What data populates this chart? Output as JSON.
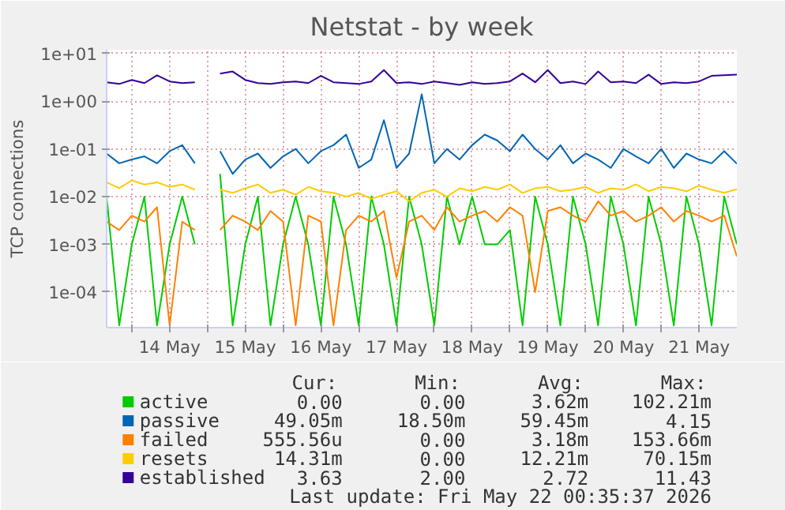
{
  "chart_data": {
    "type": "line",
    "title": "Netstat - by week",
    "ylabel": "TCP connections",
    "log": "y",
    "grid": true,
    "legend": "bottom",
    "ylim": [
      1.8e-05,
      12
    ],
    "yticks": [
      {
        "value": 0.0001,
        "label": "1e-04"
      },
      {
        "value": 0.001,
        "label": "1e-03"
      },
      {
        "value": 0.01,
        "label": "1e-02"
      },
      {
        "value": 0.1,
        "label": "1e-01"
      },
      {
        "value": 1,
        "label": "1e+00"
      },
      {
        "value": 10,
        "label": "1e+01"
      }
    ],
    "xlim": [
      "2026-05-13T16:00",
      "2026-05-22T00:00"
    ],
    "xticks": [
      {
        "value": "2026-05-14T00:00",
        "label": null
      },
      {
        "value": "2026-05-14T12:00",
        "label": "14 May"
      },
      {
        "value": "2026-05-15T00:00",
        "label": null
      },
      {
        "value": "2026-05-15T12:00",
        "label": "15 May"
      },
      {
        "value": "2026-05-16T00:00",
        "label": null
      },
      {
        "value": "2026-05-16T12:00",
        "label": "16 May"
      },
      {
        "value": "2026-05-17T00:00",
        "label": null
      },
      {
        "value": "2026-05-17T12:00",
        "label": "17 May"
      },
      {
        "value": "2026-05-18T00:00",
        "label": null
      },
      {
        "value": "2026-05-18T12:00",
        "label": "18 May"
      },
      {
        "value": "2026-05-19T00:00",
        "label": null
      },
      {
        "value": "2026-05-19T12:00",
        "label": "19 May"
      },
      {
        "value": "2026-05-20T00:00",
        "label": null
      },
      {
        "value": "2026-05-20T12:00",
        "label": "20 May"
      },
      {
        "value": "2026-05-21T00:00",
        "label": null
      },
      {
        "value": "2026-05-21T12:00",
        "label": "21 May"
      }
    ],
    "x": [
      "2026-05-13T16:00",
      "2026-05-13T20:00",
      "2026-05-14T00:00",
      "2026-05-14T04:00",
      "2026-05-14T08:00",
      "2026-05-14T12:00",
      "2026-05-14T16:00",
      "2026-05-14T20:00",
      "2026-05-15T00:00",
      "2026-05-15T04:00",
      "2026-05-15T08:00",
      "2026-05-15T12:00",
      "2026-05-15T16:00",
      "2026-05-15T20:00",
      "2026-05-16T00:00",
      "2026-05-16T04:00",
      "2026-05-16T08:00",
      "2026-05-16T12:00",
      "2026-05-16T16:00",
      "2026-05-16T20:00",
      "2026-05-17T00:00",
      "2026-05-17T04:00",
      "2026-05-17T08:00",
      "2026-05-17T12:00",
      "2026-05-17T16:00",
      "2026-05-17T20:00",
      "2026-05-18T00:00",
      "2026-05-18T04:00",
      "2026-05-18T08:00",
      "2026-05-18T12:00",
      "2026-05-18T16:00",
      "2026-05-18T20:00",
      "2026-05-19T00:00",
      "2026-05-19T04:00",
      "2026-05-19T08:00",
      "2026-05-19T12:00",
      "2026-05-19T16:00",
      "2026-05-19T20:00",
      "2026-05-20T00:00",
      "2026-05-20T04:00",
      "2026-05-20T08:00",
      "2026-05-20T12:00",
      "2026-05-20T16:00",
      "2026-05-20T20:00",
      "2026-05-21T00:00",
      "2026-05-21T04:00",
      "2026-05-21T08:00",
      "2026-05-21T12:00",
      "2026-05-21T16:00",
      "2026-05-21T20:00",
      "2026-05-22T00:00"
    ],
    "series": [
      {
        "name": "active",
        "color": "#00cc00",
        "values": [
          0.01,
          2e-05,
          0.001,
          0.01,
          2e-05,
          0.001,
          0.01,
          0.001,
          null,
          0.03,
          2e-05,
          0.001,
          0.01,
          2e-05,
          0.001,
          0.01,
          0.001,
          2e-05,
          0.01,
          0.001,
          2e-05,
          0.01,
          0.001,
          2e-05,
          0.01,
          0.001,
          2e-05,
          0.01,
          0.001,
          0.01,
          0.001,
          0.001,
          0.002,
          2e-05,
          0.01,
          0.001,
          2e-05,
          0.01,
          0.001,
          2e-05,
          0.01,
          0.001,
          2e-05,
          0.01,
          0.001,
          2e-05,
          0.01,
          0.001,
          2e-05,
          0.01,
          0.001
        ]
      },
      {
        "name": "passive",
        "color": "#0066b3",
        "values": [
          0.08,
          0.05,
          0.06,
          0.07,
          0.05,
          0.09,
          0.12,
          0.05,
          null,
          0.09,
          0.03,
          0.06,
          0.08,
          0.04,
          0.07,
          0.1,
          0.05,
          0.09,
          0.12,
          0.2,
          0.04,
          0.06,
          0.4,
          0.04,
          0.08,
          1.4,
          0.05,
          0.1,
          0.06,
          0.12,
          0.2,
          0.15,
          0.09,
          0.2,
          0.1,
          0.06,
          0.12,
          0.05,
          0.08,
          0.06,
          0.04,
          0.1,
          0.07,
          0.05,
          0.1,
          0.04,
          0.08,
          0.06,
          0.05,
          0.09,
          0.049
        ]
      },
      {
        "name": "failed",
        "color": "#ff8000",
        "values": [
          0.003,
          0.002,
          0.004,
          0.003,
          0.006,
          2e-05,
          0.003,
          0.002,
          null,
          0.002,
          0.004,
          0.003,
          0.002,
          0.005,
          0.003,
          2e-05,
          0.004,
          0.003,
          2e-05,
          0.002,
          0.004,
          0.003,
          0.005,
          0.0002,
          0.003,
          0.004,
          0.002,
          0.006,
          0.003,
          0.004,
          0.005,
          0.003,
          0.006,
          0.004,
          0.0001,
          0.005,
          0.006,
          0.004,
          0.003,
          0.008,
          0.004,
          0.005,
          0.003,
          0.004,
          0.006,
          0.003,
          0.005,
          0.004,
          0.003,
          0.004,
          0.00056
        ]
      },
      {
        "name": "resets",
        "color": "#ffcc00",
        "values": [
          0.02,
          0.015,
          0.022,
          0.018,
          0.02,
          0.016,
          0.018,
          0.014,
          null,
          0.014,
          0.012,
          0.015,
          0.018,
          0.012,
          0.014,
          0.011,
          0.016,
          0.013,
          0.012,
          0.01,
          0.012,
          0.009,
          0.011,
          0.013,
          0.008,
          0.012,
          0.014,
          0.01,
          0.015,
          0.013,
          0.016,
          0.014,
          0.018,
          0.012,
          0.015,
          0.016,
          0.013,
          0.014,
          0.016,
          0.012,
          0.015,
          0.014,
          0.018,
          0.013,
          0.016,
          0.015,
          0.013,
          0.017,
          0.014,
          0.012,
          0.0143
        ]
      },
      {
        "name": "established",
        "color": "#330099",
        "values": [
          2.5,
          2.3,
          2.8,
          2.4,
          3.5,
          2.6,
          2.4,
          2.5,
          null,
          3.8,
          4.2,
          2.8,
          2.4,
          2.3,
          2.5,
          2.6,
          2.4,
          3.4,
          2.5,
          2.4,
          2.3,
          2.6,
          4.5,
          2.4,
          2.5,
          2.3,
          2.6,
          2.4,
          2.2,
          2.5,
          2.3,
          2.4,
          2.6,
          3.8,
          2.5,
          4.5,
          2.4,
          2.6,
          2.3,
          4.2,
          2.5,
          2.6,
          2.4,
          3.6,
          2.3,
          2.5,
          2.4,
          2.6,
          3.4,
          3.5,
          3.6
        ]
      }
    ],
    "annotations": [
      "Cur:",
      "Min:",
      "Avg:",
      "Max:",
      "0.00",
      "0.00",
      "3.62m",
      "102.21m",
      "49.05m",
      "18.50m",
      "59.45m",
      "4.15",
      "555.56u",
      "0.00",
      "3.18m",
      "153.66m",
      "14.31m",
      "0.00",
      "12.21m",
      "70.15m",
      "3.63",
      "2.00",
      "2.72",
      "11.43",
      "Last update: Fri May 22 00:35:37 2026"
    ]
  }
}
